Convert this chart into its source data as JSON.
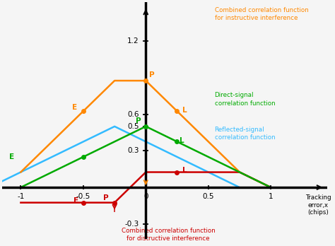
{
  "xlim": [
    -1.15,
    1.45
  ],
  "ylim": [
    -0.42,
    1.52
  ],
  "direct_color": "#00aa00",
  "reflected_color": "#33bbff",
  "constructive_color": "#ff8800",
  "destructive_color": "#cc0000",
  "reflected_shift": -0.25,
  "direct_amplitude": 0.5,
  "reflected_amplitude": 0.5,
  "label_constructive": "Combined correlation function\nfor instructive interference",
  "label_direct": "Direct-signal\ncorrelation function",
  "label_reflected": "Reflected-signal\ncorrelation function",
  "label_destructive": "Combined correlation function\nfor distructive interference",
  "xlabel": "Tracking\nerror,x\n(chips)",
  "xtick_positions": [
    -1,
    -0.5,
    0,
    0.5,
    1
  ],
  "ytick_labels": [
    0.3,
    0.5,
    0.6,
    1.2
  ],
  "bg_color": "#f5f5f5"
}
